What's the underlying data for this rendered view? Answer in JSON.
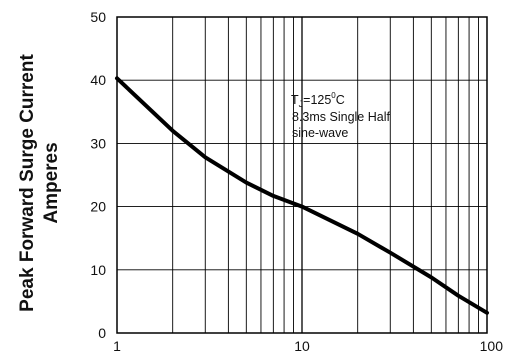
{
  "chart_data": {
    "type": "line",
    "ylabel_line1": "Peak Forward Surge Current",
    "ylabel_line2": "Amperes",
    "x_scale": "log",
    "xlim": [
      1,
      100
    ],
    "ylim": [
      0,
      50
    ],
    "x_ticks": [
      1,
      10,
      100
    ],
    "x_tick_labels": [
      "1",
      "10",
      "100"
    ],
    "y_ticks": [
      0,
      10,
      20,
      30,
      40,
      50
    ],
    "y_tick_labels": [
      "0",
      "10",
      "20",
      "30",
      "40",
      "50"
    ],
    "grid": true,
    "annotation": {
      "line1_main": "T",
      "line1_sub": "J",
      "line1_rest": "=125",
      "line1_sup": "0",
      "line1_unit": "C",
      "line2": "8.3ms Single Half",
      "line3": "sine-wave"
    },
    "series": [
      {
        "x": [
          1,
          2,
          3,
          5,
          7,
          10,
          20,
          30,
          50,
          70,
          100
        ],
        "y": [
          40.3,
          32.0,
          27.8,
          23.8,
          21.7,
          20.0,
          15.7,
          12.7,
          8.8,
          5.9,
          3.2
        ]
      }
    ]
  }
}
